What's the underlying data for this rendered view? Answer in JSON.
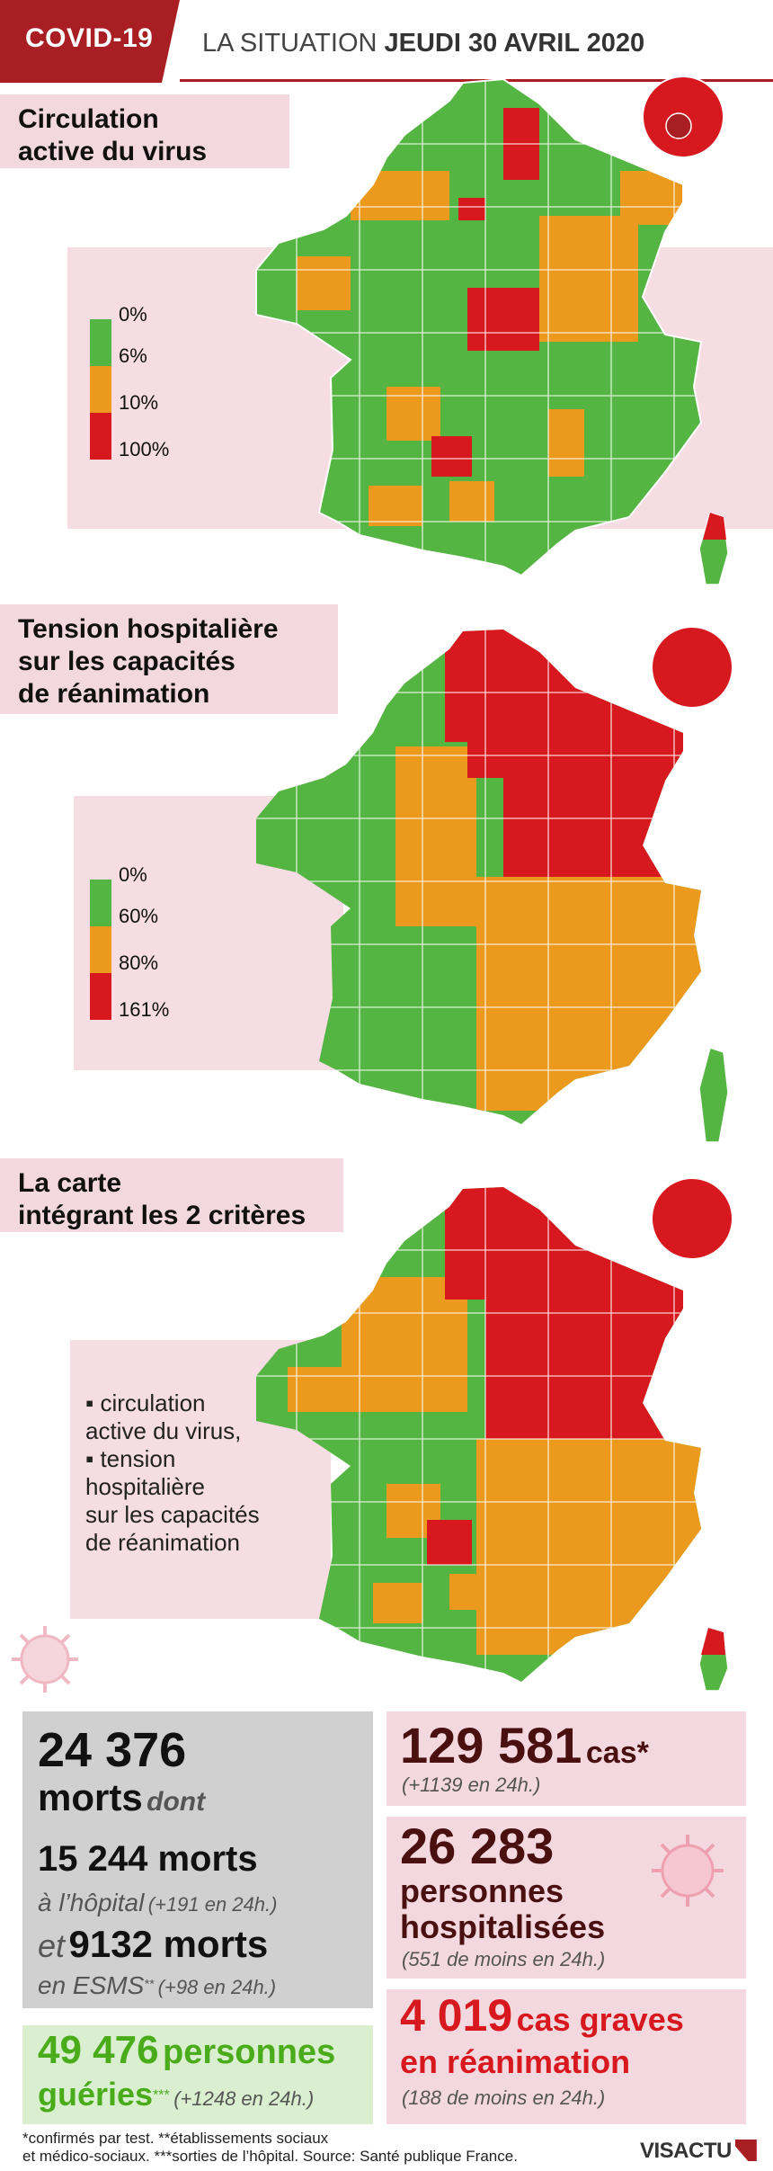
{
  "header": {
    "tag": "COVID-19",
    "prefix": "LA SITUATION ",
    "date": "JEUDI 30 AVRIL 2020"
  },
  "colors": {
    "green": "#55b543",
    "orange": "#eb9a1d",
    "red": "#d7191f",
    "brand": "#a81e22"
  },
  "map1": {
    "title_l1": "Circulation",
    "title_l2": "active du virus",
    "legend": [
      "0%",
      "6%",
      "10%",
      "100%"
    ]
  },
  "map2": {
    "title_l1": "Tension hospitalière",
    "title_l2": "sur les capacités",
    "title_l3": "de réanimation",
    "legend": [
      "0%",
      "60%",
      "80%",
      "161%"
    ]
  },
  "map3": {
    "title_l1": "La carte",
    "title_l2": "intégrant les 2 critères",
    "bullets": [
      "▪ circulation",
      "active du virus,",
      "▪ tension",
      "hospitalière",
      "sur les capacités",
      "de réanimation"
    ]
  },
  "stats": {
    "deaths_total": "24 376",
    "deaths_word": "morts",
    "dont": "dont",
    "hospital_deaths": "15 244 morts",
    "hospital_label": "à l’hôpital",
    "hospital_delta": "(+191 en 24h.)",
    "et": "et",
    "esms_deaths": "9132 morts",
    "esms_label": "en ESMS",
    "esms_sup": "**",
    "esms_delta": "(+98 en 24h.)",
    "cases": "129 581",
    "cases_word": "cas*",
    "cases_delta": "(+1139 en 24h.)",
    "hospitalized": "26 283",
    "hosp_l1": "personnes",
    "hosp_l2": "hospitalisées",
    "hosp_delta": "(551 de moins en 24h.)",
    "recovered": "49 476",
    "recovered_word": "personnes",
    "recovered_word2": "guéries",
    "recovered_sup": "***",
    "recovered_delta": "(+1248 en 24h.)",
    "icu": "4 019",
    "icu_word": "cas graves",
    "icu_word2": "en réanimation",
    "icu_delta": "(188 de moins en 24h.)"
  },
  "footer": {
    "line1": "*confirmés par test. **établissements sociaux",
    "line2": "et médico-sociaux. ***sorties de l’hôpital. Source: Santé publique France.",
    "logo": "VISACTU"
  }
}
